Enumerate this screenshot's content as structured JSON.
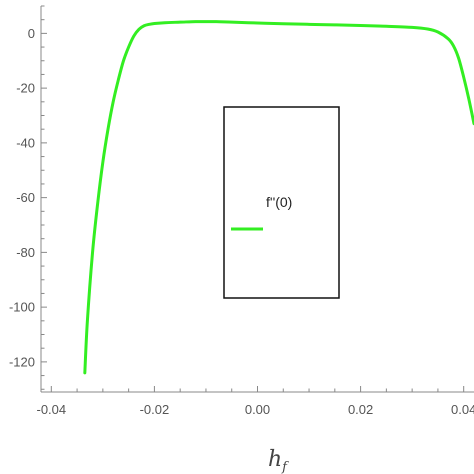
{
  "chart_data": {
    "type": "line",
    "title": "",
    "xlabel": "h",
    "xlabel_sub": "f",
    "ylabel": "",
    "xlim": [
      -0.042,
      0.042
    ],
    "ylim": [
      -131,
      10
    ],
    "x_ticks": [
      -0.04,
      -0.02,
      0.0,
      0.02,
      0.04
    ],
    "x_tick_labels": [
      "-0.04",
      "-0.02",
      "0.00",
      "0.02",
      "0.04"
    ],
    "y_ticks": [
      0,
      -20,
      -40,
      -60,
      -80,
      -100,
      -120
    ],
    "y_tick_labels": [
      "0",
      "-20",
      "-40",
      "-60",
      "-80",
      "-100",
      "-120"
    ],
    "grid": false,
    "legend": {
      "placement": "center",
      "entries": [
        "f''(0)"
      ]
    },
    "series": [
      {
        "name": "f''(0)",
        "color": "#33ee22",
        "x": [
          -0.0335,
          -0.033,
          -0.032,
          -0.031,
          -0.03,
          -0.029,
          -0.028,
          -0.027,
          -0.026,
          -0.025,
          -0.024,
          -0.023,
          -0.022,
          -0.021,
          -0.02,
          -0.018,
          -0.015,
          -0.012,
          -0.01,
          -0.008,
          -0.005,
          0.0,
          0.005,
          0.01,
          0.015,
          0.02,
          0.025,
          0.03,
          0.033,
          0.035,
          0.037,
          0.038,
          0.039,
          0.04,
          0.041,
          0.042
        ],
        "y": [
          -124,
          -105,
          -80,
          -62,
          -47,
          -35,
          -25,
          -17,
          -10,
          -5,
          -1,
          1.5,
          2.8,
          3.3,
          3.6,
          3.9,
          4.1,
          4.3,
          4.3,
          4.3,
          4.1,
          3.8,
          3.5,
          3.3,
          3.1,
          2.9,
          2.6,
          2.2,
          1.6,
          0.5,
          -2,
          -4.5,
          -9,
          -16,
          -24,
          -33
        ]
      }
    ]
  }
}
